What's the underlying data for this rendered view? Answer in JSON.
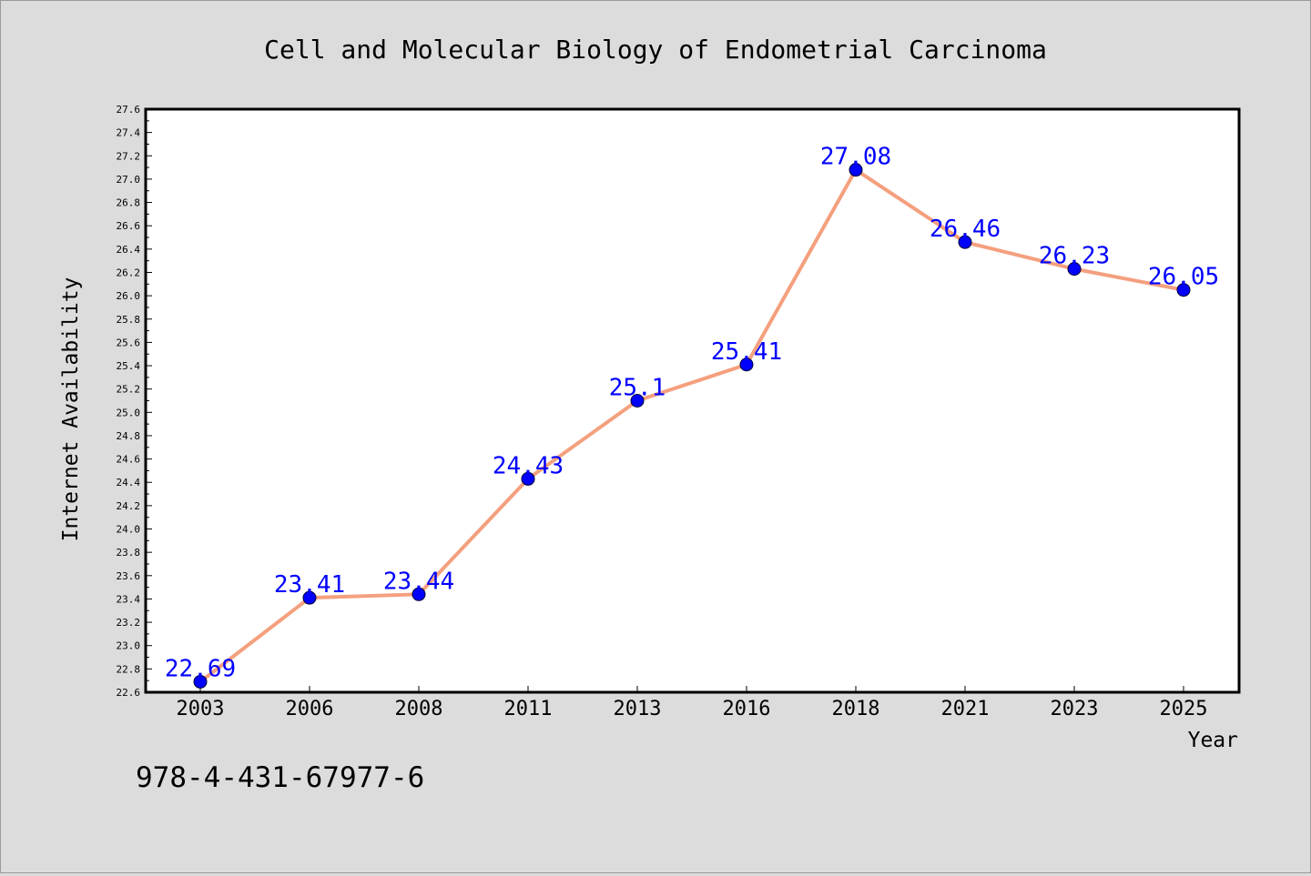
{
  "chart_data": {
    "type": "line",
    "title": "Cell and Molecular Biology of Endometrial Carcinoma",
    "xlabel": "Year",
    "ylabel": "Internet Availability",
    "categories": [
      "2003",
      "2006",
      "2008",
      "2011",
      "2013",
      "2016",
      "2018",
      "2021",
      "2023",
      "2025"
    ],
    "series": [
      {
        "values": [
          22.69,
          23.41,
          23.44,
          24.43,
          25.1,
          25.41,
          27.08,
          26.46,
          26.23,
          26.05
        ],
        "labels": [
          "22.69",
          "23.41",
          "23.44",
          "24.43",
          "25.1",
          "25.41",
          "27.08",
          "26.46",
          "26.23",
          "26.05"
        ]
      }
    ],
    "ylim": [
      22.6,
      27.6
    ],
    "ytick_step": 0.2,
    "ytick_labels": [
      "22.6",
      "22.8",
      "23.0",
      "23.2",
      "23.4",
      "23.6",
      "23.8",
      "24.0",
      "24.2",
      "24.4",
      "24.6",
      "24.8",
      "25.0",
      "25.2",
      "25.4",
      "25.6",
      "25.8",
      "26.0",
      "26.2",
      "26.4",
      "26.6",
      "26.8",
      "27.0",
      "27.2",
      "27.4",
      "27.6"
    ],
    "grid": false,
    "legend": "none",
    "colors": {
      "line": "#f4a07e",
      "marker": "#0000ff",
      "data_label": "#0000ff",
      "plot_background": "#ffffff",
      "figure_background": "#dcdcdc"
    }
  },
  "footer": {
    "isbn": "978-4-431-67977-6"
  }
}
